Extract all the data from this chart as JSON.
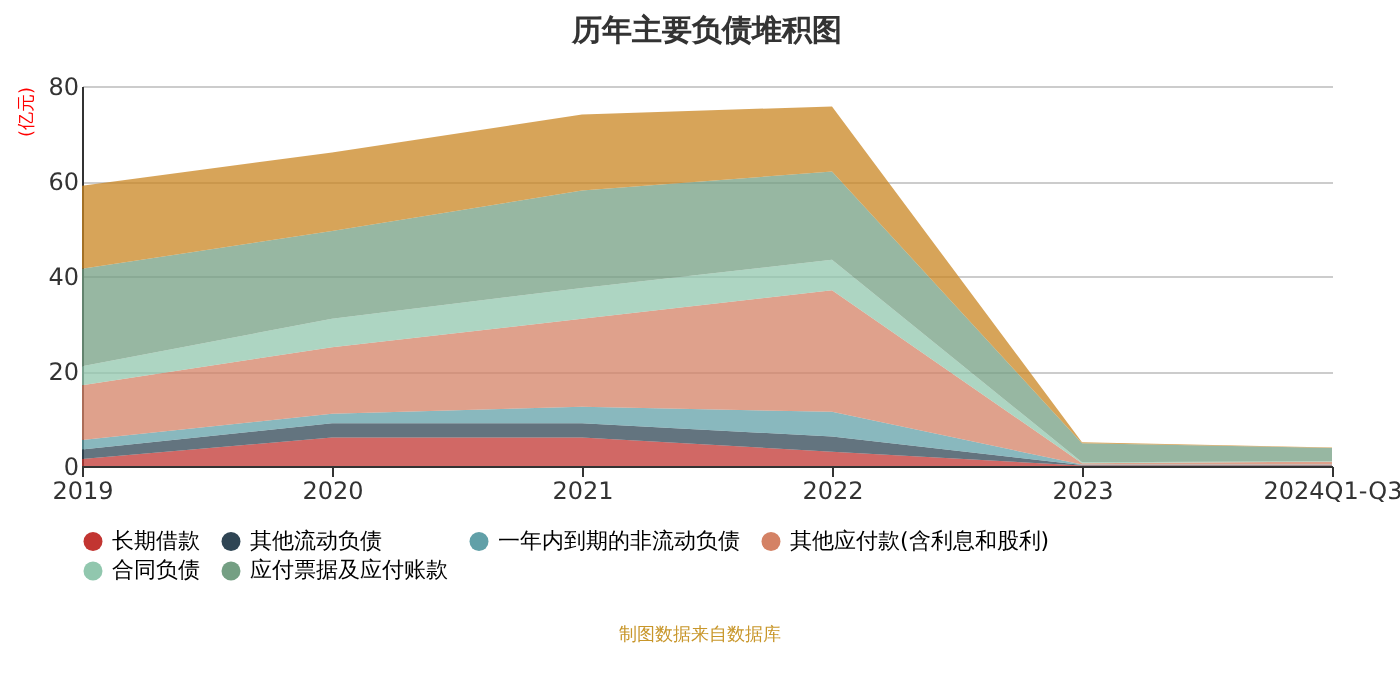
{
  "chart_data": {
    "type": "area",
    "stacked": true,
    "title": "历年主要负债堆积图",
    "ylabel": "(亿元)",
    "categories": [
      "2019",
      "2020",
      "2021",
      "2022",
      "2023",
      "2024Q1-Q3"
    ],
    "series": [
      {
        "name": "长期借款",
        "color": "#c23531",
        "values": [
          1.5,
          6,
          6,
          3,
          0.1,
          0.1
        ]
      },
      {
        "name": "其他流动负债",
        "color": "#2f4554",
        "values": [
          2,
          3,
          3,
          3.2,
          0.1,
          0.1
        ]
      },
      {
        "name": "一年内到期的非流动负债",
        "color": "#61a0a8",
        "values": [
          2,
          2,
          3.5,
          5.2,
          0.1,
          0.1
        ]
      },
      {
        "name": "其他应付款(含利息和股利)",
        "color": "#d48265",
        "values": [
          11.5,
          14,
          18.5,
          25.6,
          0.3,
          0.6
        ]
      },
      {
        "name": "合同负债",
        "color": "#91c7ae",
        "values": [
          4,
          6,
          6.5,
          6.4,
          0.2,
          0.1
        ]
      },
      {
        "name": "应付票据及应付账款",
        "color": "#749f83",
        "values": [
          20.5,
          18.5,
          20.5,
          18.6,
          4,
          2.8
        ]
      },
      {
        "color": "#ca8622",
        "values": [
          17.5,
          16.5,
          16,
          13.7,
          0.2,
          0.1
        ]
      }
    ],
    "ylim": [
      0,
      80
    ],
    "yticks": [
      0,
      20,
      40,
      60,
      80
    ],
    "grid": "y",
    "legend": "bottom",
    "annotations": [
      "制图数据来自数据库"
    ]
  }
}
